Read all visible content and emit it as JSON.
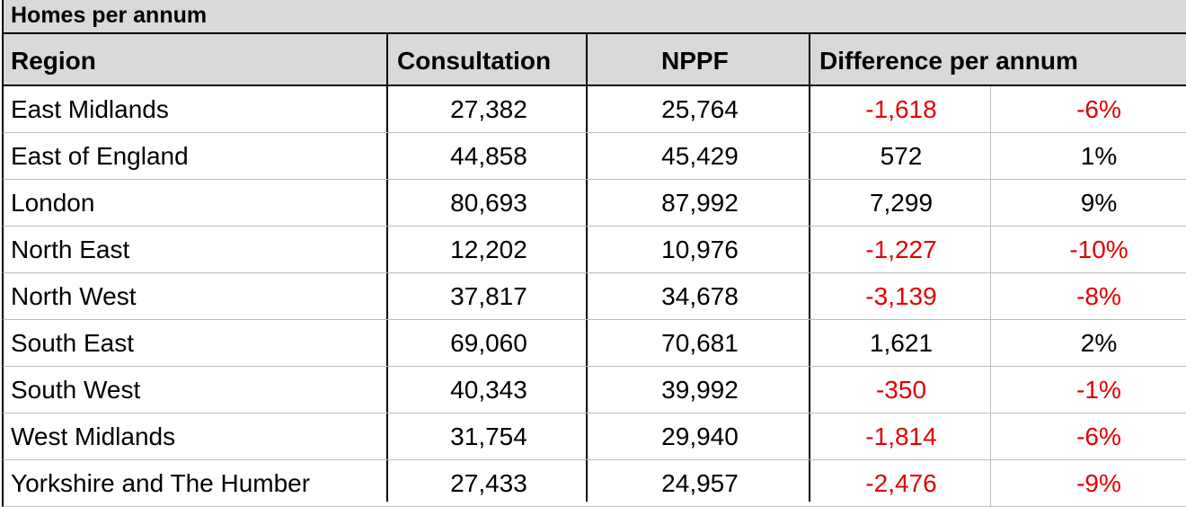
{
  "table": {
    "title": "Homes per annum",
    "headers": {
      "region": "Region",
      "consultation": "Consultation",
      "nppf": "NPPF",
      "difference": "Difference per annum"
    },
    "rows": [
      {
        "region": "East Midlands",
        "consultation": "27,382",
        "nppf": "25,764",
        "diff": "-1,618",
        "pct": "-6%",
        "negative": true
      },
      {
        "region": "East of England",
        "consultation": "44,858",
        "nppf": "45,429",
        "diff": "572",
        "pct": "1%",
        "negative": false
      },
      {
        "region": "London",
        "consultation": "80,693",
        "nppf": "87,992",
        "diff": "7,299",
        "pct": "9%",
        "negative": false
      },
      {
        "region": "North East",
        "consultation": "12,202",
        "nppf": "10,976",
        "diff": "-1,227",
        "pct": "-10%",
        "negative": true
      },
      {
        "region": "North West",
        "consultation": "37,817",
        "nppf": "34,678",
        "diff": "-3,139",
        "pct": "-8%",
        "negative": true
      },
      {
        "region": "South East",
        "consultation": "69,060",
        "nppf": "70,681",
        "diff": "1,621",
        "pct": "2%",
        "negative": false
      },
      {
        "region": "South West",
        "consultation": "40,343",
        "nppf": "39,992",
        "diff": "-350",
        "pct": "-1%",
        "negative": true
      },
      {
        "region": "West Midlands",
        "consultation": "31,754",
        "nppf": "29,940",
        "diff": "-1,814",
        "pct": "-6%",
        "negative": true
      },
      {
        "region": "Yorkshire and The Humber",
        "consultation": "27,433",
        "nppf": "24,957",
        "diff": "-2,476",
        "pct": "-9%",
        "negative": true
      }
    ]
  },
  "colors": {
    "header_bg": "#d9d9d9",
    "negative_text": "#e00000",
    "grid": "#bdbdbd",
    "border": "#000000"
  }
}
